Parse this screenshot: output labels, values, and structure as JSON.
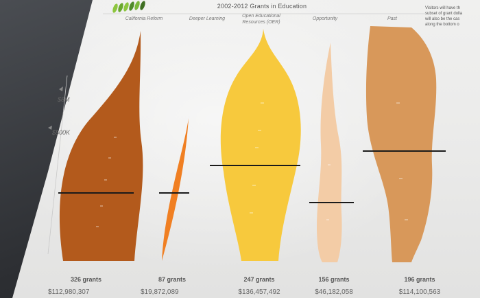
{
  "page": {
    "title": "2002-2012 Grants in Education",
    "side_note": [
      "Visitors will have th",
      "subset of grant dolla",
      "will also be the cas",
      "along the bottom o"
    ]
  },
  "colors": {
    "california_reform": "#b35a1c",
    "deeper_learning": "#f07f22",
    "oer": "#f7c93d",
    "opportunity": "#f3cca6",
    "past": "#d8985a"
  },
  "chart_data": {
    "type": "violin",
    "title": "2002-2012 Grants in Education",
    "y_ticks": [
      "$8M",
      "$500K"
    ],
    "categories": [
      "California Reform",
      "Deeper Learning",
      "Open Educational Resources (OER)",
      "Opportunity",
      "Past"
    ],
    "category_lines": [
      [
        "California Reform"
      ],
      [
        "Deeper Learning"
      ],
      [
        "Open Educational",
        "Resources (OER)"
      ],
      [
        "Opportunity"
      ],
      [
        "Past"
      ]
    ],
    "grant_counts": [
      "326 grants",
      "87 grants",
      "247 grants",
      "156 grants",
      "196 grants"
    ],
    "totals": [
      "$112,980,307",
      "$19,872,089",
      "$136,457,492",
      "$46,182,058",
      "$114,100,563"
    ]
  }
}
